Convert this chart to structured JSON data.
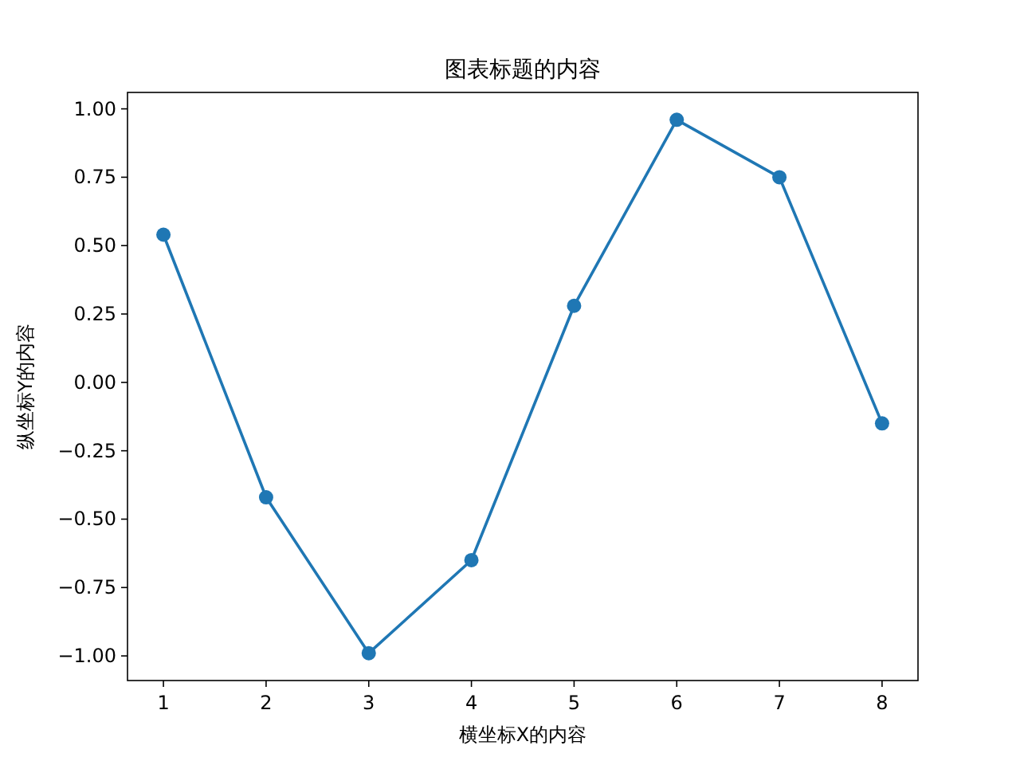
{
  "chart_data": {
    "type": "line",
    "title": "图表标题的内容",
    "xlabel": "横坐标X的内容",
    "ylabel": "纵坐标Y的内容",
    "x": [
      1,
      2,
      3,
      4,
      5,
      6,
      7,
      8
    ],
    "series": [
      {
        "color": "#1f77b4",
        "values": [
          0.54,
          -0.42,
          -0.99,
          -0.65,
          0.28,
          0.96,
          0.75,
          -0.15
        ]
      }
    ],
    "xlim": [
      0.65,
      8.35
    ],
    "ylim": [
      -1.09,
      1.06
    ],
    "xticks": [
      1,
      2,
      3,
      4,
      5,
      6,
      7,
      8
    ],
    "yticks": [
      {
        "value": -1,
        "label": "−1.00"
      },
      {
        "value": -0.75,
        "label": "−0.75"
      },
      {
        "value": -0.5,
        "label": "−0.50"
      },
      {
        "value": -0.25,
        "label": "−0.25"
      },
      {
        "value": 0,
        "label": "0.00"
      },
      {
        "value": 0.25,
        "label": "0.25"
      },
      {
        "value": 0.5,
        "label": "0.50"
      },
      {
        "value": 0.75,
        "label": "0.75"
      },
      {
        "value": 1,
        "label": "1.00"
      }
    ],
    "marker": "circle",
    "line_style": "solid",
    "grid": false
  }
}
